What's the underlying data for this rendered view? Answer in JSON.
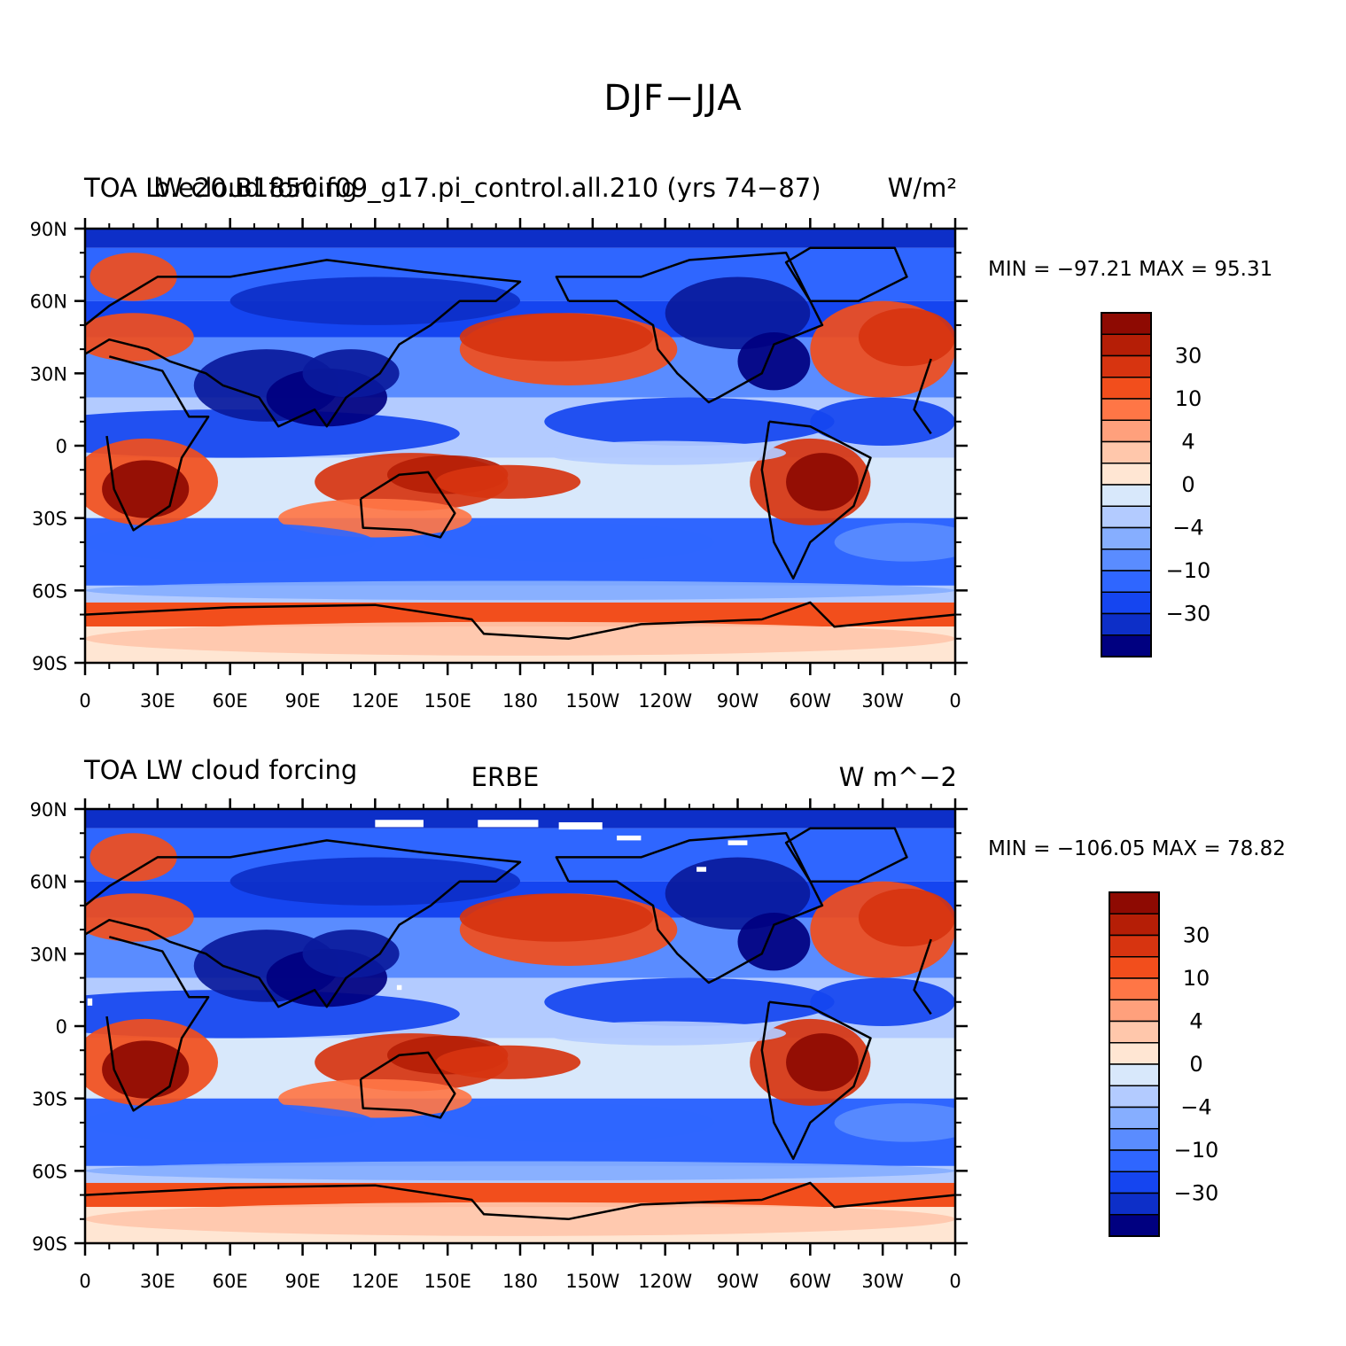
{
  "figure": {
    "title": "DJF−JJA"
  },
  "palette": {
    "levels": [
      "#000080",
      "#0a1a9c",
      "#0d2fc8",
      "#1545f0",
      "#2f66ff",
      "#5a8cff",
      "#86aeff",
      "#b3cbff",
      "#d8e8fb",
      "#ffe6d3",
      "#ffc7ab",
      "#ffa07c",
      "#ff7646",
      "#f24e1c",
      "#d73410",
      "#b51e06",
      "#8e0a02"
    ],
    "coast": "#000000"
  },
  "axes": {
    "lat_labels": [
      "90N",
      "60N",
      "30N",
      "0",
      "30S",
      "60S",
      "90S"
    ],
    "lon_labels": [
      "0",
      "30E",
      "60E",
      "90E",
      "120E",
      "150E",
      "180",
      "150W",
      "120W",
      "90W",
      "60W",
      "30W",
      "0"
    ]
  },
  "panels": [
    {
      "id": "model",
      "left_title": "TOA LW cloud forcing",
      "center_title": "b.e20.B1850.f09_g17.pi_control.all.210 (yrs 74−87)",
      "units": "W/m²",
      "stats": "MIN = −97.21 MAX =  95.31",
      "colorbar_labels": [
        "30",
        "10",
        "4",
        "0",
        "−4",
        "−10",
        "−30"
      ],
      "missing_data_patches": false
    },
    {
      "id": "obs",
      "left_title": "TOA LW cloud forcing",
      "center_title": "ERBE",
      "units": "W m^−2",
      "stats": "MIN = −106.05 MAX =  78.82",
      "colorbar_labels": [
        "30",
        "10",
        "4",
        "0",
        "−4",
        "−10",
        "−30"
      ],
      "missing_data_patches": true
    }
  ]
}
